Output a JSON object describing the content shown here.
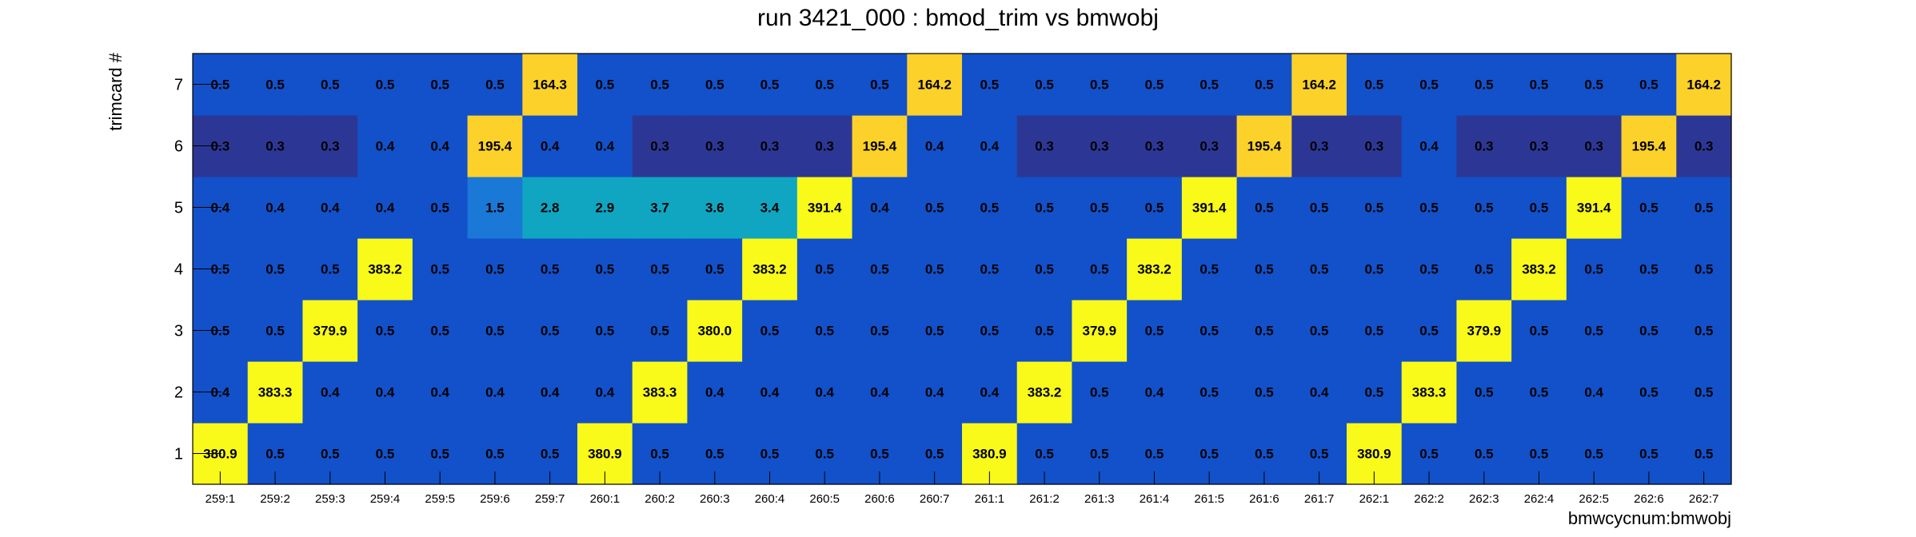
{
  "chart_data": {
    "type": "heatmap",
    "title": "run 3421_000 : bmod_trim vs bmwobj",
    "xlabel": "bmwcycnum:bmwobj",
    "ylabel": "trimcard #",
    "x_categories": [
      "259:1",
      "259:2",
      "259:3",
      "259:4",
      "259:5",
      "259:6",
      "259:7",
      "260:1",
      "260:2",
      "260:3",
      "260:4",
      "260:5",
      "260:6",
      "260:7",
      "261:1",
      "261:2",
      "261:3",
      "261:4",
      "261:5",
      "261:6",
      "261:7",
      "262:1",
      "262:2",
      "262:3",
      "262:4",
      "262:5",
      "262:6",
      "262:7"
    ],
    "y_categories": [
      "1",
      "2",
      "3",
      "4",
      "5",
      "6",
      "7"
    ],
    "rows": [
      {
        "y": "1",
        "values": [
          380.9,
          0.5,
          0.5,
          0.5,
          0.5,
          0.5,
          0.5,
          380.9,
          0.5,
          0.5,
          0.5,
          0.5,
          0.5,
          0.5,
          380.9,
          0.5,
          0.5,
          0.5,
          0.5,
          0.5,
          0.5,
          380.9,
          0.5,
          0.5,
          0.5,
          0.5,
          0.5,
          0.5
        ]
      },
      {
        "y": "2",
        "values": [
          0.4,
          383.3,
          0.4,
          0.4,
          0.4,
          0.4,
          0.4,
          0.4,
          383.3,
          0.4,
          0.4,
          0.4,
          0.4,
          0.4,
          0.4,
          383.2,
          0.5,
          0.4,
          0.5,
          0.5,
          0.4,
          0.5,
          383.3,
          0.5,
          0.5,
          0.4,
          0.5,
          0.5
        ]
      },
      {
        "y": "3",
        "values": [
          0.5,
          0.5,
          379.9,
          0.5,
          0.5,
          0.5,
          0.5,
          0.5,
          0.5,
          380.0,
          0.5,
          0.5,
          0.5,
          0.5,
          0.5,
          0.5,
          379.9,
          0.5,
          0.5,
          0.5,
          0.5,
          0.5,
          0.5,
          379.9,
          0.5,
          0.5,
          0.5,
          0.5
        ]
      },
      {
        "y": "4",
        "values": [
          0.5,
          0.5,
          0.5,
          383.2,
          0.5,
          0.5,
          0.5,
          0.5,
          0.5,
          0.5,
          383.2,
          0.5,
          0.5,
          0.5,
          0.5,
          0.5,
          0.5,
          383.2,
          0.5,
          0.5,
          0.5,
          0.5,
          0.5,
          0.5,
          383.2,
          0.5,
          0.5,
          0.5
        ]
      },
      {
        "y": "5",
        "values": [
          0.4,
          0.4,
          0.4,
          0.4,
          0.5,
          1.5,
          2.8,
          2.9,
          3.7,
          3.6,
          3.4,
          391.4,
          0.4,
          0.5,
          0.5,
          0.5,
          0.5,
          0.5,
          391.4,
          0.5,
          0.5,
          0.5,
          0.5,
          0.5,
          0.5,
          391.4,
          0.5,
          0.5
        ]
      },
      {
        "y": "6",
        "values": [
          0.3,
          0.3,
          0.3,
          0.4,
          0.4,
          195.4,
          0.4,
          0.4,
          0.3,
          0.3,
          0.3,
          0.3,
          195.4,
          0.4,
          0.4,
          0.3,
          0.3,
          0.3,
          0.3,
          195.4,
          0.3,
          0.3,
          0.4,
          0.3,
          0.3,
          0.3,
          195.4,
          0.3
        ]
      },
      {
        "y": "7",
        "values": [
          0.5,
          0.5,
          0.5,
          0.5,
          0.5,
          0.5,
          164.3,
          0.5,
          0.5,
          0.5,
          0.5,
          0.5,
          0.5,
          164.2,
          0.5,
          0.5,
          0.5,
          0.5,
          0.5,
          0.5,
          164.2,
          0.5,
          0.5,
          0.5,
          0.5,
          0.5,
          0.5,
          164.2
        ]
      }
    ],
    "colors": {
      "low_dark": "#2c3795",
      "low": "#1251c9",
      "mid_low": "#1a78d6",
      "mid": "#10a6c1",
      "mid_high": "#fcd12a",
      "high": "#f9f91a"
    }
  }
}
